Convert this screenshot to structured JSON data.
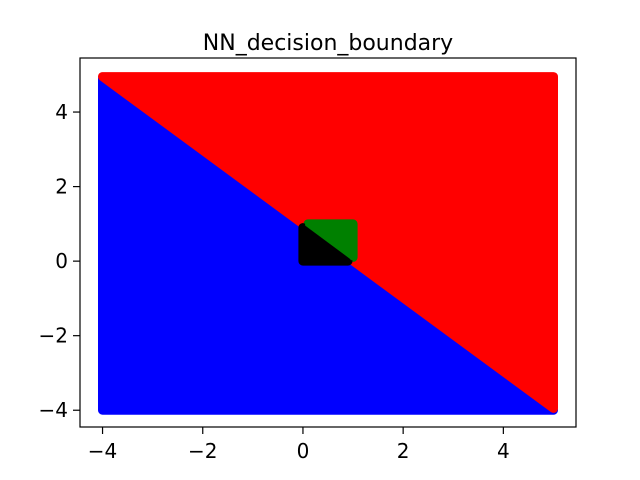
{
  "chart_data": {
    "type": "scatter",
    "title": "NN_decision_boundary",
    "xlabel": "",
    "ylabel": "",
    "xlim": [
      -4.45,
      5.45
    ],
    "ylim": [
      -4.45,
      5.45
    ],
    "xticks": [
      -4,
      -2,
      0,
      2,
      4
    ],
    "yticks": [
      -4,
      -2,
      0,
      2,
      4
    ],
    "xtick_labels": [
      "−4",
      "−2",
      "0",
      "2",
      "4"
    ],
    "ytick_labels": [
      "−4",
      "−2",
      "0",
      "2",
      "4"
    ],
    "grid": false,
    "legend": "none",
    "regions": [
      {
        "name": "",
        "color": "#0000ff",
        "polygon": [
          [
            -4,
            4.9
          ],
          [
            5,
            -4
          ],
          [
            -4,
            -4
          ]
        ]
      },
      {
        "name": "",
        "color": "#ff0000",
        "polygon": [
          [
            -4,
            4.95
          ],
          [
            5,
            4.95
          ],
          [
            5,
            -3.95
          ]
        ]
      },
      {
        "name": "",
        "color": "#008000",
        "polygon": [
          [
            0.1,
            1.0
          ],
          [
            1.0,
            1.0
          ],
          [
            1.0,
            0.1
          ]
        ]
      },
      {
        "name": "",
        "color": "#000000",
        "polygon": [
          [
            0.0,
            0.9
          ],
          [
            0.0,
            0.0
          ],
          [
            0.9,
            0.0
          ]
        ]
      }
    ],
    "squares": [
      {
        "color": "#000000",
        "x": [
          0.0,
          0.9
        ],
        "y": [
          0.0,
          0.9
        ]
      },
      {
        "color": "#008000",
        "x": [
          0.1,
          1.0
        ],
        "y": [
          0.1,
          1.0
        ]
      }
    ]
  }
}
